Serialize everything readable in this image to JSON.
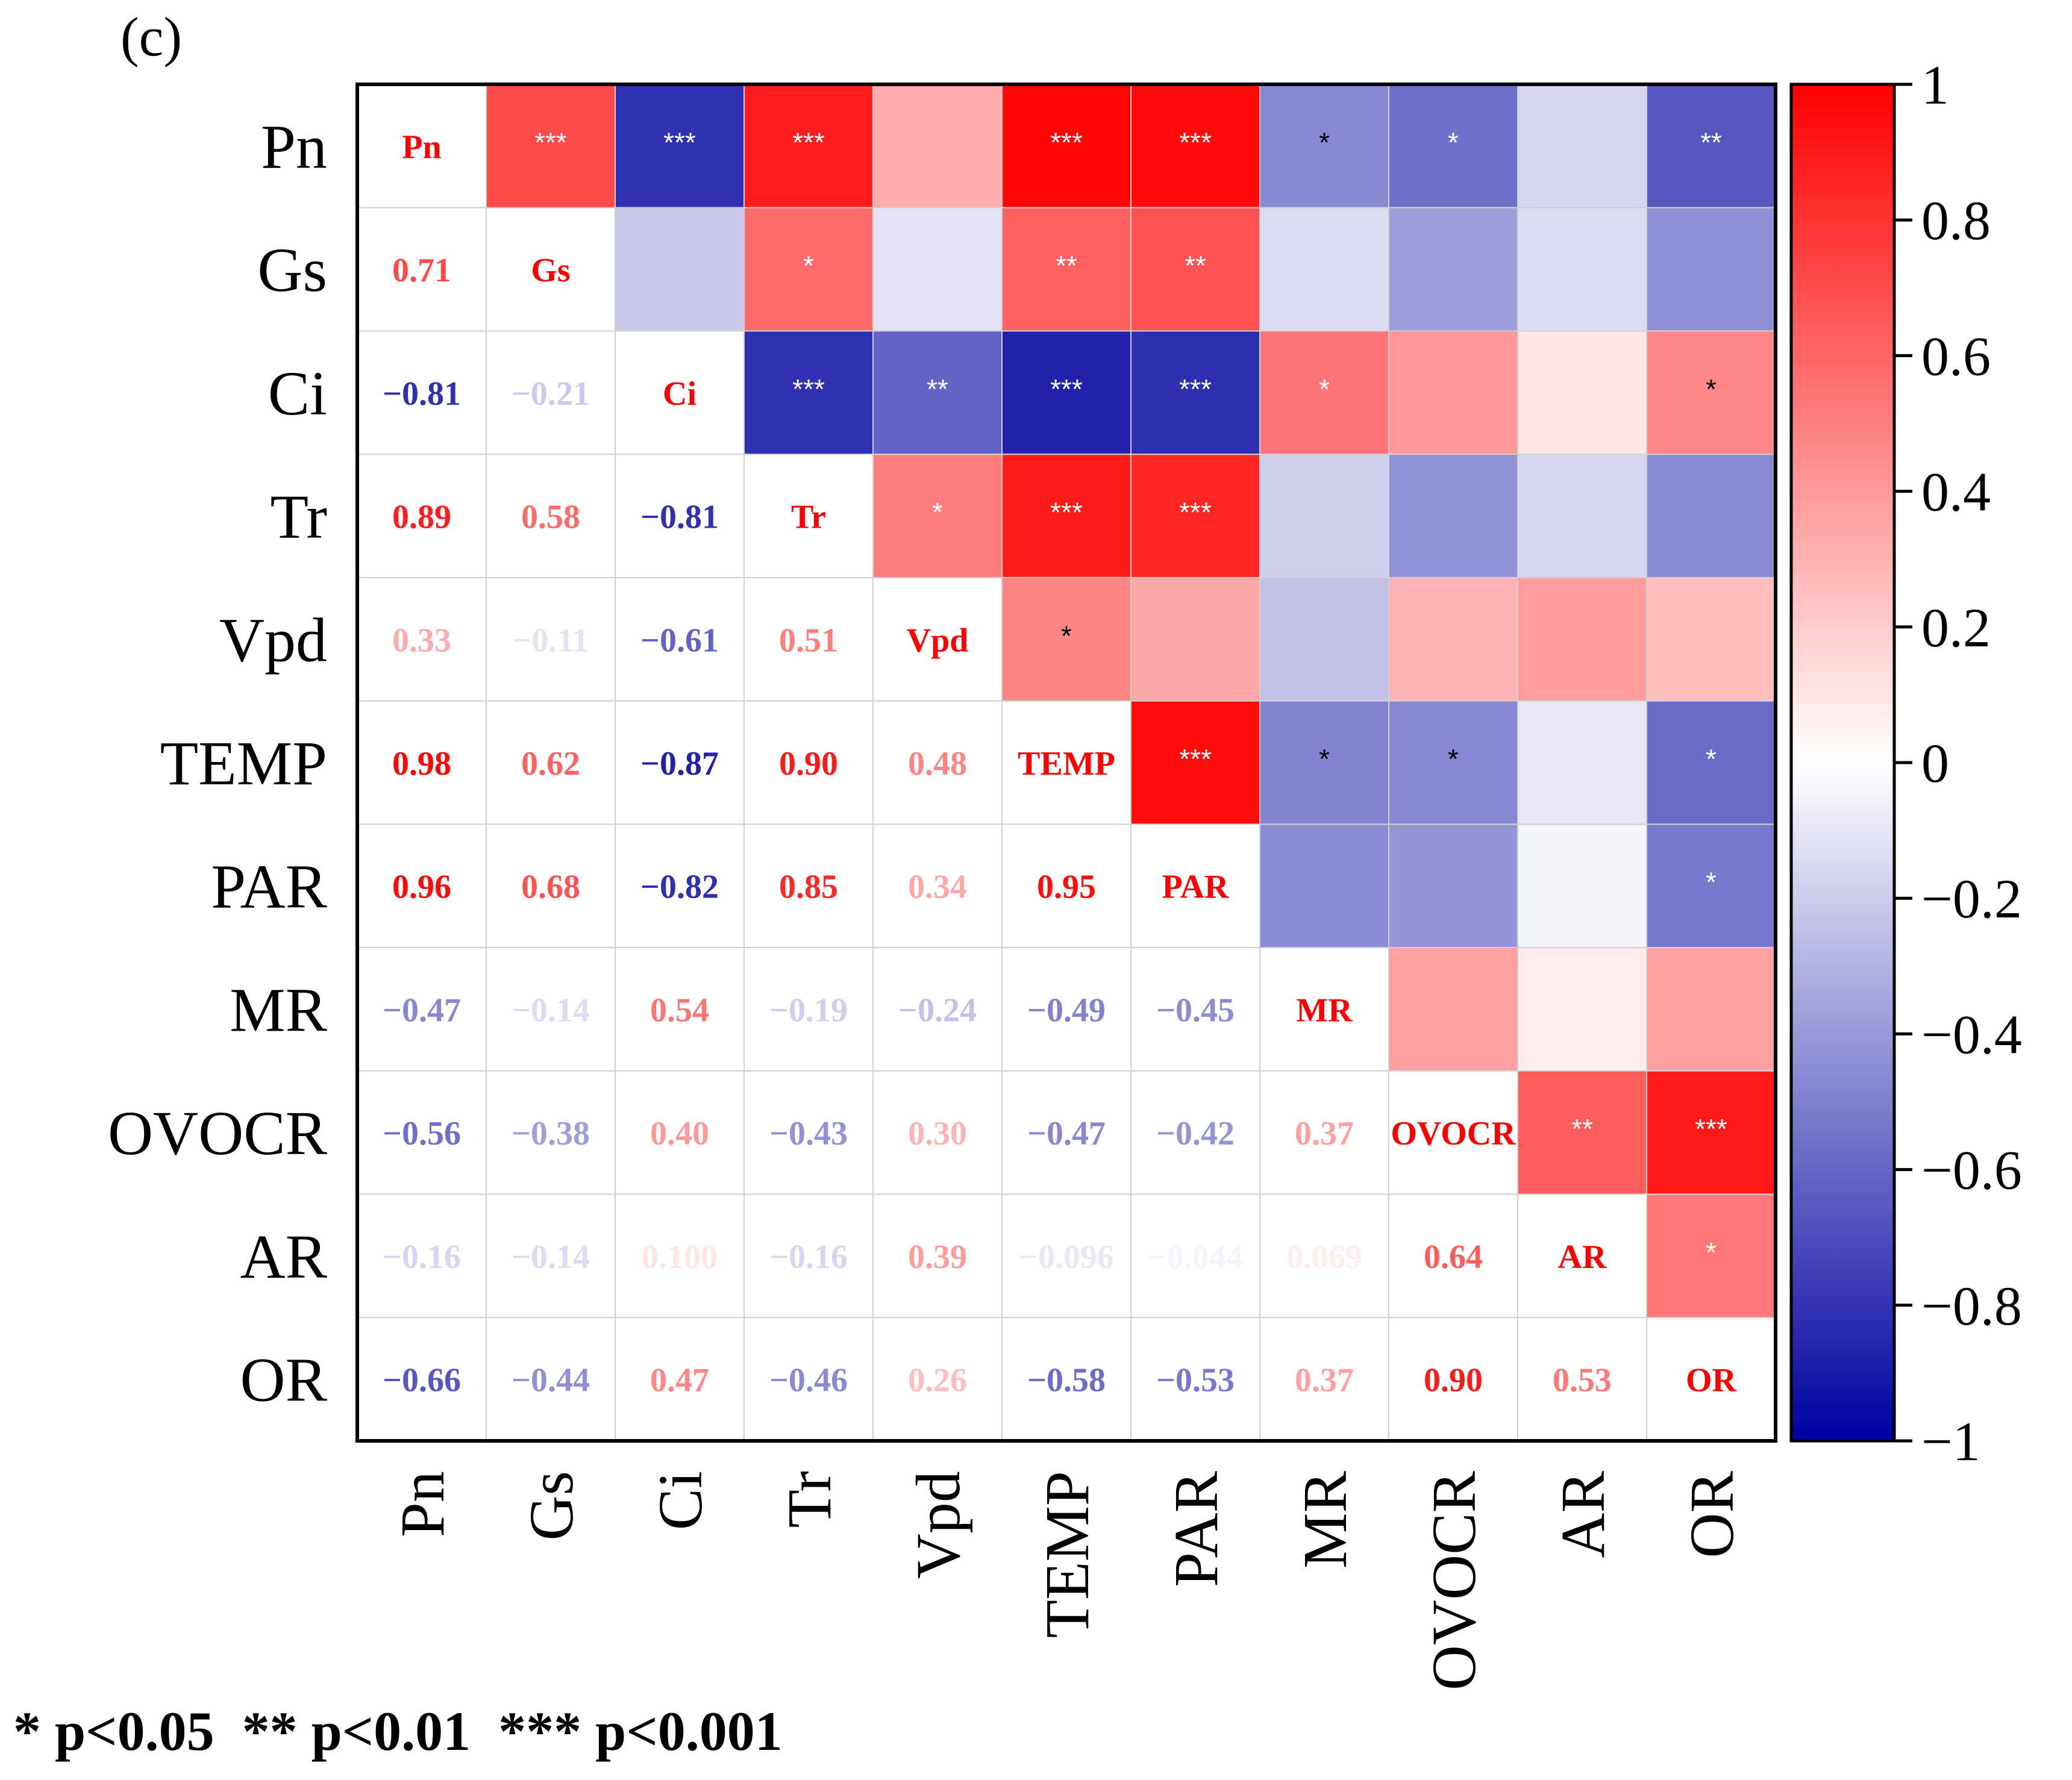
{
  "chart_data": {
    "type": "heatmap",
    "panel_label": "(c)",
    "variables": [
      "Pn",
      "Gs",
      "Ci",
      "Tr",
      "Vpd",
      "TEMP",
      "PAR",
      "MR",
      "OVOCR",
      "AR",
      "OR"
    ],
    "lower_labels": [
      [],
      [
        "0.71"
      ],
      [
        "−0.81",
        "−0.21"
      ],
      [
        "0.89",
        "0.58",
        "−0.81"
      ],
      [
        "0.33",
        "−0.11",
        "−0.61",
        "0.51"
      ],
      [
        "0.98",
        "0.62",
        "−0.87",
        "0.90",
        "0.48"
      ],
      [
        "0.96",
        "0.68",
        "−0.82",
        "0.85",
        "0.34",
        "0.95"
      ],
      [
        "−0.47",
        "−0.14",
        "0.54",
        "−0.19",
        "−0.24",
        "−0.49",
        "−0.45"
      ],
      [
        "−0.56",
        "−0.38",
        "0.40",
        "−0.43",
        "0.30",
        "−0.47",
        "−0.42",
        "0.37"
      ],
      [
        "−0.16",
        "−0.14",
        "0.100",
        "−0.16",
        "0.39",
        "−0.096",
        "−0.044",
        "0.069",
        "0.64"
      ],
      [
        "−0.66",
        "−0.44",
        "0.47",
        "−0.46",
        "0.26",
        "−0.58",
        "−0.53",
        "0.37",
        "0.90",
        "0.53"
      ]
    ],
    "upper_stars": [
      [
        "",
        "***",
        "***",
        "***",
        "",
        "***",
        "***",
        "*",
        "*",
        "",
        "**"
      ],
      [
        "",
        "",
        "",
        "*",
        "",
        "**",
        "**",
        "",
        "",
        "",
        ""
      ],
      [
        "",
        "",
        "",
        "***",
        "**",
        "***",
        "***",
        "*",
        "",
        "",
        "*"
      ],
      [
        "",
        "",
        "",
        "",
        "*",
        "***",
        "***",
        "",
        "",
        "",
        ""
      ],
      [
        "",
        "",
        "",
        "",
        "",
        "*",
        "",
        "",
        "",
        "",
        ""
      ],
      [
        "",
        "",
        "",
        "",
        "",
        "",
        "***",
        "*",
        "*",
        "",
        "*"
      ],
      [
        "",
        "",
        "",
        "",
        "",
        "",
        "",
        "",
        "",
        "",
        "*"
      ],
      [
        "",
        "",
        "",
        "",
        "",
        "",
        "",
        "",
        "",
        "",
        ""
      ],
      [
        "",
        "",
        "",
        "",
        "",
        "",
        "",
        "",
        "",
        "**",
        "***"
      ],
      [
        "",
        "",
        "",
        "",
        "",
        "",
        "",
        "",
        "",
        "",
        "*"
      ],
      [
        "",
        "",
        "",
        "",
        "",
        "",
        "",
        "",
        "",
        "",
        ""
      ]
    ],
    "colorbar": {
      "range": [
        -1,
        1
      ],
      "ticks": [
        "1",
        "0.8",
        "0.6",
        "0.4",
        "0.2",
        "0",
        "−0.2",
        "−0.4",
        "−0.6",
        "−0.8",
        "−1"
      ],
      "tick_values": [
        1,
        0.8,
        0.6,
        0.4,
        0.2,
        0,
        -0.2,
        -0.4,
        -0.6,
        -0.8,
        -1
      ],
      "low_color": "#0000a0",
      "mid_color": "#ffffff",
      "high_color": "#ff0000"
    },
    "legend_text": "* p<0.05  ** p<0.01  *** p<0.001"
  }
}
